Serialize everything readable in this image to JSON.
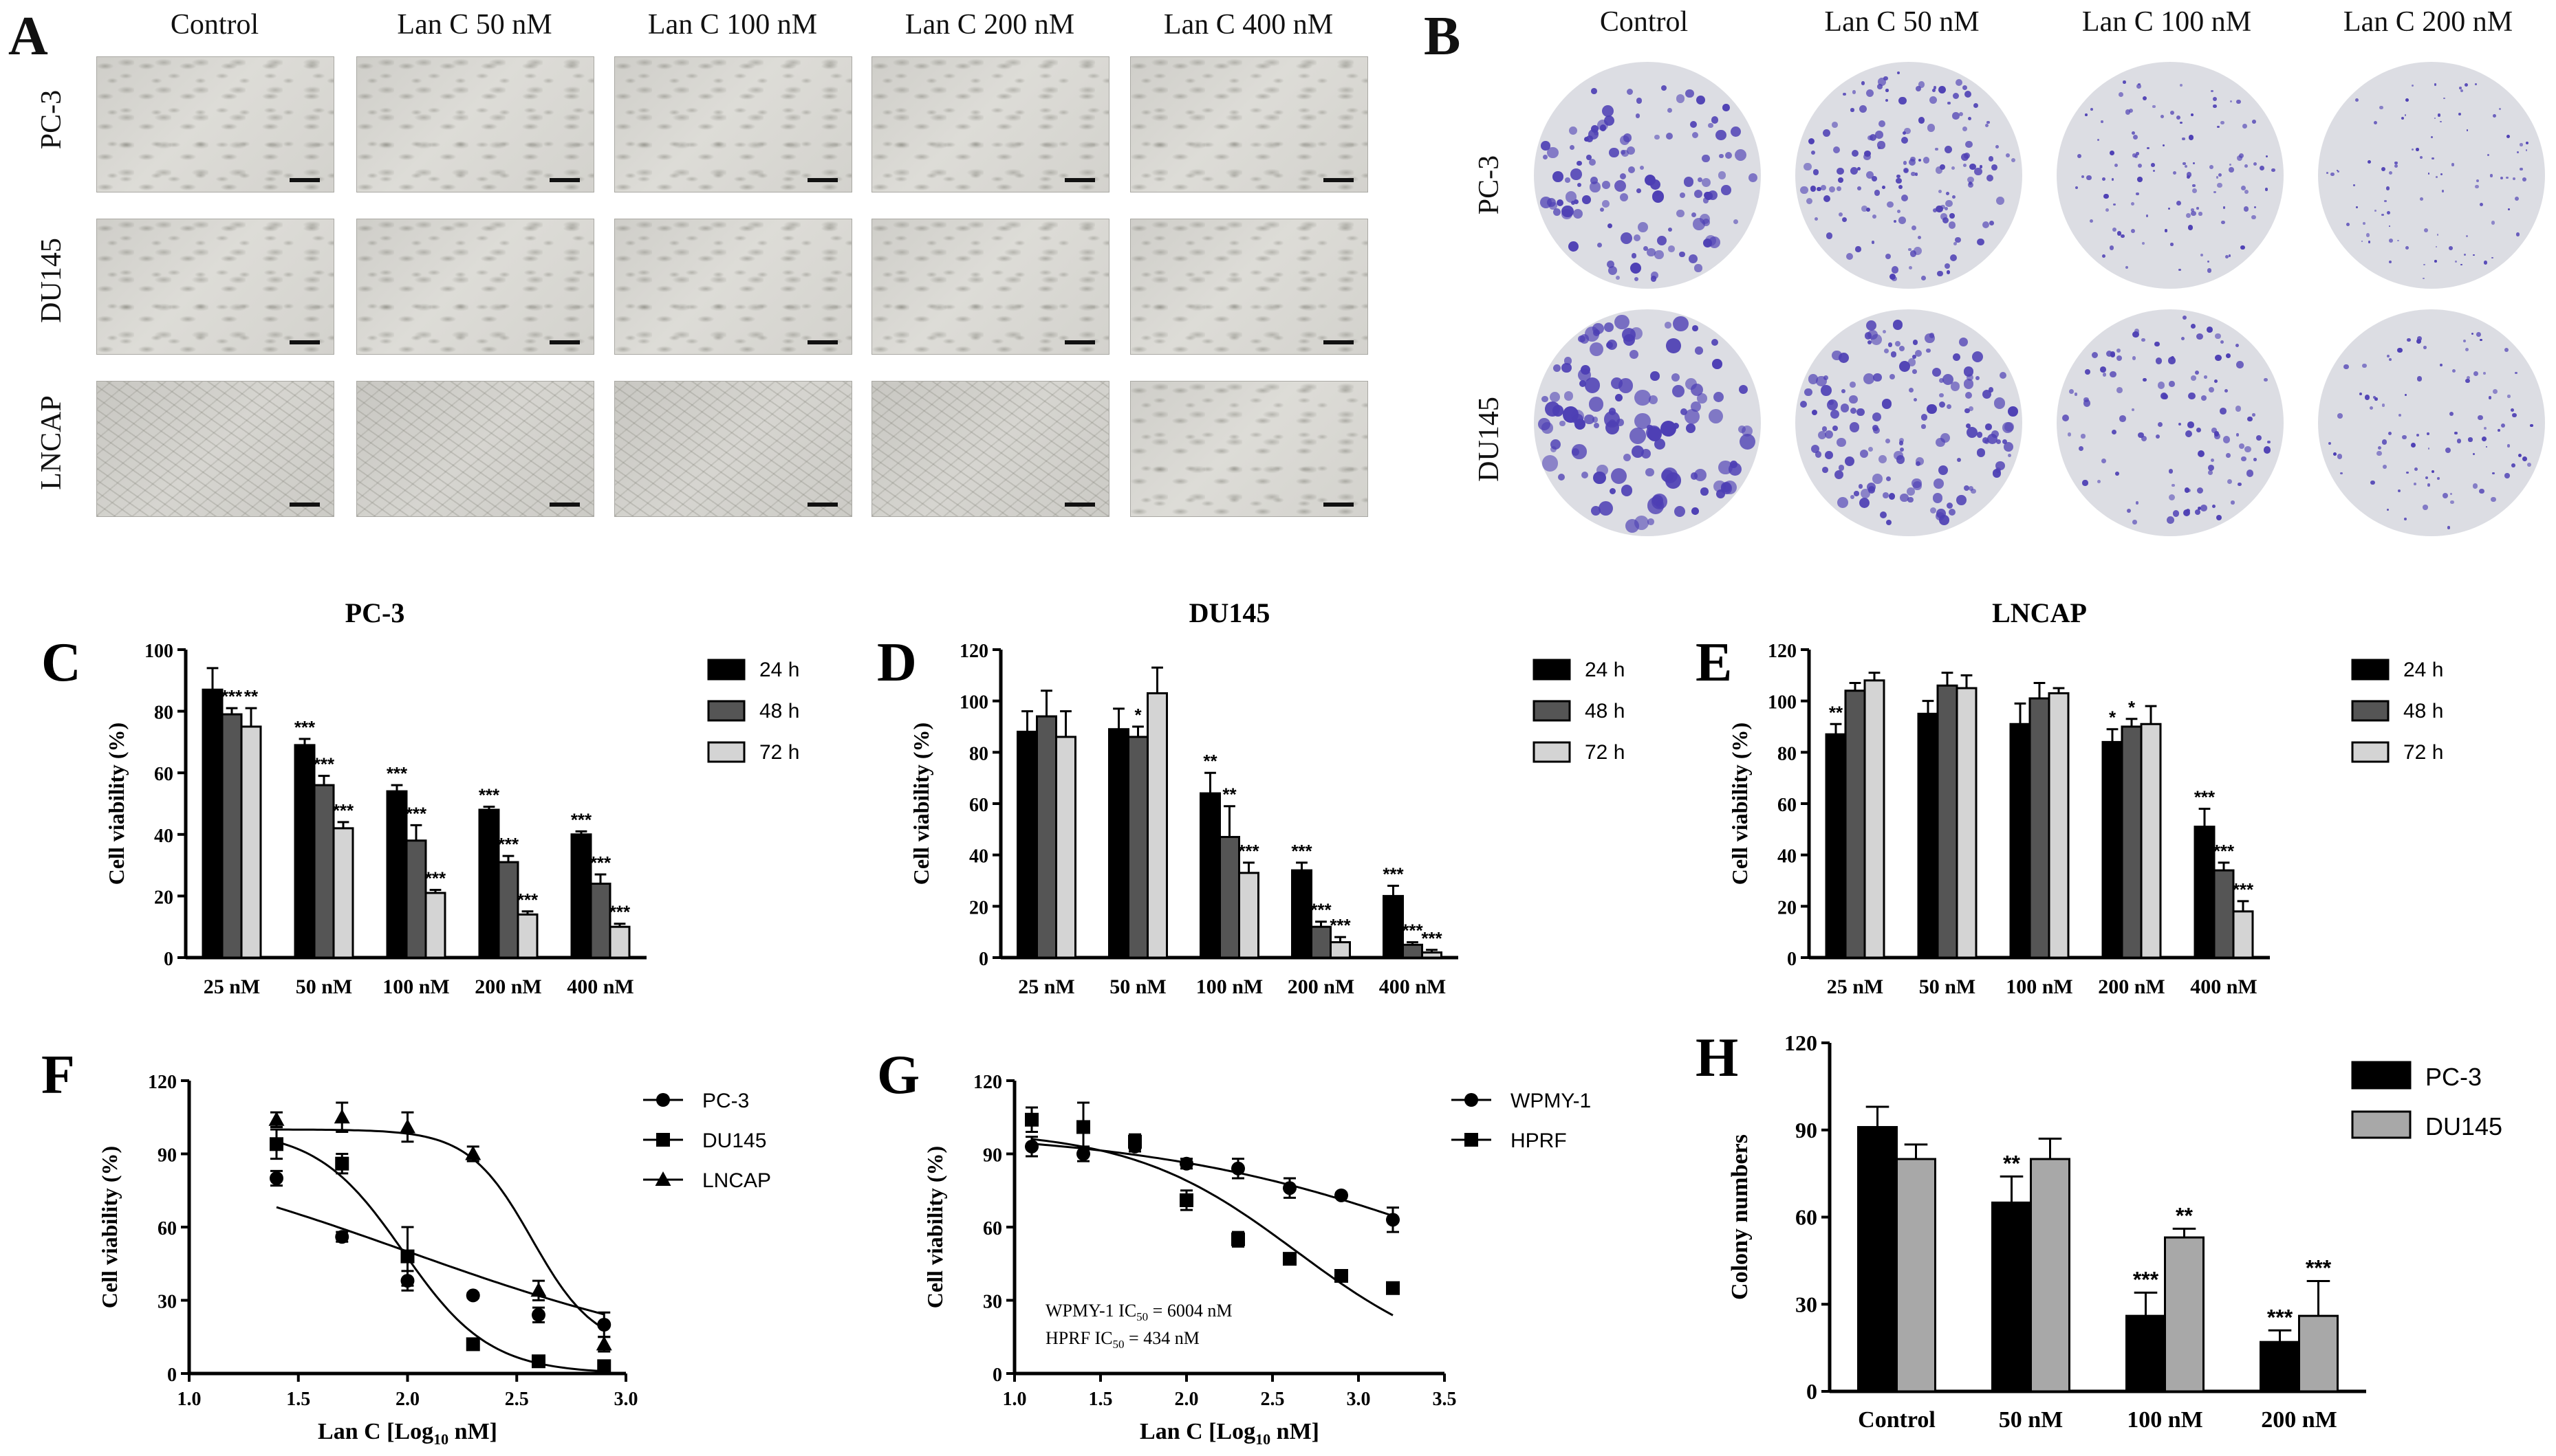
{
  "panels": {
    "A": {
      "letter": "A",
      "cols": [
        "Control",
        "Lan C  50 nM",
        "Lan C  100 nM",
        "Lan C  200 nM",
        "Lan C  400 nM"
      ],
      "rows": [
        "PC-3",
        "DU145",
        "LNCAP"
      ]
    },
    "B": {
      "letter": "B",
      "cols": [
        "Control",
        "Lan C  50 nM",
        "Lan C  100 nM",
        "Lan C  200 nM"
      ],
      "rows": [
        "PC-3",
        "DU145"
      ]
    },
    "C": {
      "letter": "C"
    },
    "D": {
      "letter": "D"
    },
    "E": {
      "letter": "E"
    },
    "F": {
      "letter": "F"
    },
    "G": {
      "letter": "G"
    },
    "H": {
      "letter": "H"
    }
  },
  "colors": {
    "black": "#000000",
    "dark_gray": "#555555",
    "light_gray": "#d4d4d4",
    "mid_gray": "#a8a8a8",
    "stain": "#4d3fb4"
  },
  "chart_data": [
    {
      "panel": "C",
      "type": "bar",
      "title": "PC-3",
      "ylabel": "Cell viability (%)",
      "xlabel": "",
      "categories": [
        "25 nM",
        "50 nM",
        "100 nM",
        "200 nM",
        "400 nM"
      ],
      "ylim": [
        0,
        100
      ],
      "yticks": [
        0,
        20,
        40,
        60,
        80,
        100
      ],
      "legend": "top-right",
      "series": [
        {
          "name": "24 h",
          "values": [
            87,
            69,
            54,
            48,
            40
          ],
          "errors": [
            7,
            2,
            2,
            1,
            1
          ],
          "sig": [
            "",
            "***",
            "***",
            "***",
            "***"
          ]
        },
        {
          "name": "48 h",
          "values": [
            79,
            56,
            38,
            31,
            24
          ],
          "errors": [
            2,
            3,
            5,
            2,
            3
          ],
          "sig": [
            "***",
            "***",
            "***",
            "***",
            "***"
          ]
        },
        {
          "name": "72 h",
          "values": [
            75,
            42,
            21,
            14,
            10
          ],
          "errors": [
            6,
            2,
            1,
            1,
            1
          ],
          "sig": [
            "**",
            "***",
            "***",
            "***",
            "***"
          ]
        }
      ]
    },
    {
      "panel": "D",
      "type": "bar",
      "title": "DU145",
      "ylabel": "Cell viability (%)",
      "xlabel": "",
      "categories": [
        "25 nM",
        "50 nM",
        "100 nM",
        "200 nM",
        "400 nM"
      ],
      "ylim": [
        0,
        120
      ],
      "yticks": [
        0,
        20,
        40,
        60,
        80,
        100,
        120
      ],
      "legend": "top-right",
      "series": [
        {
          "name": "24 h",
          "values": [
            88,
            89,
            64,
            34,
            24
          ],
          "errors": [
            8,
            8,
            8,
            3,
            4
          ],
          "sig": [
            "",
            "",
            "**",
            "***",
            "***"
          ]
        },
        {
          "name": "48 h",
          "values": [
            94,
            86,
            47,
            12,
            5
          ],
          "errors": [
            10,
            4,
            12,
            2,
            1
          ],
          "sig": [
            "",
            "*",
            "**",
            "***",
            "***"
          ]
        },
        {
          "name": "72 h",
          "values": [
            86,
            103,
            33,
            6,
            2
          ],
          "errors": [
            10,
            10,
            4,
            2,
            1
          ],
          "sig": [
            "",
            "",
            "***",
            "***",
            "***"
          ]
        }
      ]
    },
    {
      "panel": "E",
      "type": "bar",
      "title": "LNCAP",
      "ylabel": "Cell viability (%)",
      "xlabel": "",
      "categories": [
        "25 nM",
        "50 nM",
        "100 nM",
        "200 nM",
        "400 nM"
      ],
      "ylim": [
        0,
        120
      ],
      "yticks": [
        0,
        20,
        40,
        60,
        80,
        100,
        120
      ],
      "legend": "top-right",
      "series": [
        {
          "name": "24 h",
          "values": [
            87,
            95,
            91,
            84,
            51
          ],
          "errors": [
            4,
            5,
            8,
            5,
            7
          ],
          "sig": [
            "**",
            "",
            "",
            "*",
            "***"
          ]
        },
        {
          "name": "48 h",
          "values": [
            104,
            106,
            101,
            90,
            34
          ],
          "errors": [
            3,
            5,
            6,
            3,
            3
          ],
          "sig": [
            "",
            "",
            "",
            "*",
            "***"
          ]
        },
        {
          "name": "72 h",
          "values": [
            108,
            105,
            103,
            91,
            18
          ],
          "errors": [
            3,
            5,
            2,
            7,
            4
          ],
          "sig": [
            "",
            "",
            "",
            "",
            "***"
          ]
        }
      ]
    },
    {
      "panel": "F",
      "type": "scatter",
      "title": "",
      "ylabel": "Cell viability (%)",
      "xlabel": "Lan C [Log10 nM]",
      "xlim": [
        1.0,
        3.0
      ],
      "xticks": [
        1.0,
        1.5,
        2.0,
        2.5,
        3.0
      ],
      "ylim": [
        0,
        120
      ],
      "yticks": [
        0,
        30,
        60,
        90,
        120
      ],
      "legend": "top-right",
      "series": [
        {
          "name": "PC-3",
          "marker": "circle",
          "x": [
            1.4,
            1.7,
            2.0,
            2.3,
            2.6,
            2.9
          ],
          "y": [
            80,
            56,
            38,
            32,
            24,
            20
          ],
          "errors": [
            3,
            2,
            4,
            1,
            3,
            5
          ],
          "fit": {
            "top": 100,
            "bottom": 0,
            "log_ic50": 2.0,
            "hill": 0.55
          }
        },
        {
          "name": "DU145",
          "marker": "square",
          "x": [
            1.4,
            1.7,
            2.0,
            2.3,
            2.6,
            2.9
          ],
          "y": [
            94,
            86,
            48,
            12,
            5,
            3
          ],
          "errors": [
            6,
            4,
            12,
            1,
            1,
            1
          ],
          "fit": {
            "top": 100,
            "bottom": 0,
            "log_ic50": 1.98,
            "hill": 2.2
          }
        },
        {
          "name": "LNCAP",
          "marker": "triangle",
          "x": [
            1.4,
            1.7,
            2.0,
            2.3,
            2.6,
            2.9
          ],
          "y": [
            104,
            105,
            101,
            90,
            34,
            12
          ],
          "errors": [
            3,
            6,
            6,
            3,
            4,
            3
          ],
          "fit": {
            "top": 100,
            "bottom": 10,
            "log_ic50": 2.57,
            "hill": 3.0
          }
        }
      ]
    },
    {
      "panel": "G",
      "type": "scatter",
      "title": "",
      "ylabel": "Cell viability (%)",
      "xlabel": "Lan C [Log10 nM]",
      "xlim": [
        1.0,
        3.5
      ],
      "xticks": [
        1.0,
        1.5,
        2.0,
        2.5,
        3.0,
        3.5
      ],
      "ylim": [
        0,
        120
      ],
      "yticks": [
        0,
        30,
        60,
        90,
        120
      ],
      "legend": "top-right",
      "annotation": [
        {
          "label": "WPMY-1 IC",
          "sub": "50",
          "rest": " = 6004 nM"
        },
        {
          "label": "HPRF IC",
          "sub": "50",
          "rest": " = 434 nM"
        }
      ],
      "series": [
        {
          "name": "WPMY-1",
          "marker": "circle",
          "x": [
            1.1,
            1.4,
            1.7,
            2.0,
            2.3,
            2.6,
            2.9,
            3.2
          ],
          "y": [
            93,
            90,
            93,
            86,
            84,
            76,
            73,
            63
          ],
          "errors": [
            4,
            3,
            2,
            2,
            4,
            4,
            1,
            5
          ],
          "fit": {
            "top": 100,
            "bottom": 0,
            "log_ic50": 3.78,
            "hill": 0.45
          }
        },
        {
          "name": "HPRF",
          "marker": "square",
          "x": [
            1.1,
            1.4,
            1.7,
            2.0,
            2.3,
            2.6,
            2.9,
            3.2
          ],
          "y": [
            104,
            101,
            95,
            71,
            55,
            47,
            40,
            35
          ],
          "errors": [
            5,
            10,
            3,
            4,
            3,
            1,
            1,
            1
          ],
          "fit": {
            "top": 100,
            "bottom": 0,
            "log_ic50": 2.64,
            "hill": 0.9
          }
        }
      ]
    },
    {
      "panel": "H",
      "type": "bar",
      "title": "",
      "ylabel": "Colony numbers",
      "xlabel": "",
      "categories": [
        "Control",
        "50 nM",
        "100 nM",
        "200 nM"
      ],
      "ylim": [
        0,
        120
      ],
      "yticks": [
        0,
        30,
        60,
        90,
        120
      ],
      "legend": "top-right",
      "series": [
        {
          "name": "PC-3",
          "values": [
            91,
            65,
            26,
            17
          ],
          "errors": [
            7,
            9,
            8,
            4
          ],
          "sig": [
            "",
            "**",
            "***",
            "***"
          ]
        },
        {
          "name": "DU145",
          "values": [
            80,
            80,
            53,
            26
          ],
          "errors": [
            5,
            7,
            3,
            12
          ],
          "sig": [
            "",
            "",
            "**",
            "***"
          ]
        }
      ]
    }
  ]
}
